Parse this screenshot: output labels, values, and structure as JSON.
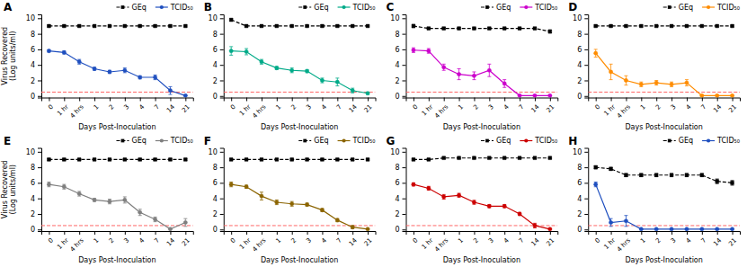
{
  "chart_data": [
    {
      "type": "line",
      "title": "A",
      "x_label": "Days Post-Inoculation",
      "y_label": "Virus Recovered\n(Log units/ml)",
      "categories": [
        "0",
        "1 hr",
        "4 hrs",
        "1",
        "2",
        "3",
        "4",
        "7",
        "14",
        "21"
      ],
      "ylim": [
        -0.2,
        10.5
      ],
      "yticks": [
        0,
        2,
        4,
        6,
        8,
        10
      ],
      "grid": false,
      "legend": "upper right",
      "hline": {
        "value": 0.5,
        "color": "#FF6666",
        "line_style": "dashed"
      },
      "series": [
        {
          "name": "GEq",
          "color": "black",
          "marker": "square",
          "line_style": "dashed",
          "values": [
            9.0,
            9.0,
            9.0,
            9.0,
            9.0,
            9.0,
            9.0,
            9.0,
            9.0,
            9.0
          ],
          "errors": [
            0.1,
            0.1,
            0.1,
            0.1,
            0.1,
            0.1,
            0.1,
            0.1,
            0.1,
            0.1
          ]
        },
        {
          "name": "TCID₅₀",
          "color": "#1F4FBF",
          "marker": "circle",
          "line_style": "solid",
          "values": [
            5.8,
            5.6,
            4.4,
            3.5,
            3.1,
            3.3,
            2.4,
            2.4,
            0.7,
            0.05
          ],
          "errors": [
            0.15,
            0.2,
            0.3,
            0.2,
            0.2,
            0.3,
            0.2,
            0.3,
            0.5,
            0.05
          ]
        }
      ]
    },
    {
      "type": "line",
      "title": "B",
      "x_label": "Days Post-Inoculation",
      "categories": [
        "0",
        "1 hr",
        "4 hrs",
        "1",
        "2",
        "3",
        "4",
        "7",
        "14",
        "21"
      ],
      "ylim": [
        -0.2,
        10.5
      ],
      "yticks": [
        0,
        2,
        4,
        6,
        8,
        10
      ],
      "grid": false,
      "legend": "upper right",
      "hline": {
        "value": 0.5,
        "color": "#FF6666",
        "line_style": "dashed"
      },
      "series": [
        {
          "name": "GEq",
          "color": "black",
          "marker": "square",
          "line_style": "dashed",
          "values": [
            9.8,
            9.0,
            9.0,
            9.0,
            9.0,
            9.0,
            9.0,
            9.0,
            9.0,
            9.0
          ],
          "errors": [
            0.15,
            0.1,
            0.1,
            0.1,
            0.1,
            0.1,
            0.1,
            0.1,
            0.1,
            0.1
          ]
        },
        {
          "name": "TCID₅₀",
          "color": "#00AA88",
          "marker": "circle",
          "line_style": "solid",
          "values": [
            5.8,
            5.7,
            4.4,
            3.6,
            3.3,
            3.2,
            2.0,
            1.8,
            0.7,
            0.35
          ],
          "errors": [
            0.55,
            0.4,
            0.3,
            0.2,
            0.3,
            0.2,
            0.3,
            0.5,
            0.3,
            0.15
          ]
        }
      ]
    },
    {
      "type": "line",
      "title": "C",
      "x_label": "Days Post-Inoculation",
      "categories": [
        "0",
        "1 hr",
        "4 hrs",
        "1",
        "2",
        "3",
        "4",
        "7",
        "14",
        "21"
      ],
      "ylim": [
        -0.2,
        10.5
      ],
      "yticks": [
        0,
        2,
        4,
        6,
        8,
        10
      ],
      "grid": false,
      "legend": "upper right",
      "hline": {
        "value": 0.5,
        "color": "#FF6666",
        "line_style": "dashed"
      },
      "series": [
        {
          "name": "GEq",
          "color": "black",
          "marker": "square",
          "line_style": "dashed",
          "values": [
            9.0,
            8.7,
            8.7,
            8.7,
            8.7,
            8.7,
            8.7,
            8.7,
            8.7,
            8.3
          ],
          "errors": [
            0.2,
            0.1,
            0.1,
            0.1,
            0.1,
            0.1,
            0.1,
            0.1,
            0.1,
            0.2
          ]
        },
        {
          "name": "TCID₅₀",
          "color": "#CC00CC",
          "marker": "circle",
          "line_style": "solid",
          "values": [
            5.9,
            5.8,
            3.7,
            2.8,
            2.6,
            3.3,
            1.6,
            0.05,
            0.05,
            0.05
          ],
          "errors": [
            0.3,
            0.3,
            0.4,
            0.7,
            0.5,
            0.8,
            0.5,
            0.05,
            0.05,
            0.05
          ]
        }
      ]
    },
    {
      "type": "line",
      "title": "D",
      "x_label": "Days Post-Inoculation",
      "categories": [
        "0",
        "1 hr",
        "4 hrs",
        "1",
        "2",
        "3",
        "4",
        "7",
        "14",
        "21"
      ],
      "ylim": [
        -0.2,
        10.5
      ],
      "yticks": [
        0,
        2,
        4,
        6,
        8,
        10
      ],
      "grid": false,
      "legend": "upper right",
      "hline": {
        "value": 0.5,
        "color": "#FF6666",
        "line_style": "dashed"
      },
      "series": [
        {
          "name": "GEq",
          "color": "black",
          "marker": "square",
          "line_style": "dashed",
          "values": [
            9.0,
            9.0,
            9.0,
            9.0,
            9.0,
            9.0,
            9.0,
            9.0,
            9.0,
            9.0
          ],
          "errors": [
            0.1,
            0.1,
            0.1,
            0.1,
            0.1,
            0.1,
            0.1,
            0.1,
            0.1,
            0.1
          ]
        },
        {
          "name": "TCID₅₀",
          "color": "#FF8C00",
          "marker": "circle",
          "line_style": "solid",
          "values": [
            5.5,
            3.1,
            2.0,
            1.5,
            1.7,
            1.5,
            1.7,
            0.05,
            0.05,
            0.05
          ],
          "errors": [
            0.5,
            1.0,
            0.6,
            0.3,
            0.3,
            0.3,
            0.4,
            0.05,
            0.05,
            0.05
          ]
        }
      ]
    },
    {
      "type": "line",
      "title": "E",
      "x_label": "Days Post-Inoculation",
      "y_label": "Virus Recovered\n(Log units/ml)",
      "categories": [
        "0",
        "1 hr",
        "4 hrs",
        "1",
        "2",
        "3",
        "4",
        "7",
        "14",
        "21"
      ],
      "ylim": [
        -0.2,
        10.5
      ],
      "yticks": [
        0,
        2,
        4,
        6,
        8,
        10
      ],
      "grid": false,
      "legend": "upper right",
      "hline": {
        "value": 0.5,
        "color": "#FF6666",
        "line_style": "dashed"
      },
      "series": [
        {
          "name": "GEq",
          "color": "black",
          "marker": "square",
          "line_style": "dashed",
          "values": [
            9.0,
            9.0,
            9.0,
            9.0,
            9.0,
            9.0,
            9.0,
            9.0,
            9.0,
            9.0
          ],
          "errors": [
            0.1,
            0.1,
            0.1,
            0.1,
            0.1,
            0.1,
            0.1,
            0.1,
            0.1,
            0.1
          ]
        },
        {
          "name": "TCID₅₀",
          "color": "#7F7F7F",
          "marker": "circle",
          "line_style": "solid",
          "values": [
            5.8,
            5.5,
            4.6,
            3.8,
            3.6,
            3.8,
            2.2,
            1.3,
            0.05,
            0.9
          ],
          "errors": [
            0.3,
            0.3,
            0.3,
            0.2,
            0.3,
            0.4,
            0.4,
            0.3,
            0.05,
            0.5
          ]
        }
      ]
    },
    {
      "type": "line",
      "title": "F",
      "x_label": "Days Post-Inoculation",
      "categories": [
        "0",
        "1 hr",
        "4 hrs",
        "1",
        "2",
        "3",
        "4",
        "7",
        "14",
        "21"
      ],
      "ylim": [
        -0.2,
        10.5
      ],
      "yticks": [
        0,
        2,
        4,
        6,
        8,
        10
      ],
      "grid": false,
      "legend": "upper right",
      "hline": {
        "value": 0.5,
        "color": "#FF6666",
        "line_style": "dashed"
      },
      "series": [
        {
          "name": "GEq",
          "color": "black",
          "marker": "square",
          "line_style": "dashed",
          "values": [
            9.0,
            9.0,
            9.0,
            9.0,
            9.0,
            9.0,
            9.0,
            9.0,
            9.0,
            9.0
          ],
          "errors": [
            0.1,
            0.1,
            0.1,
            0.1,
            0.1,
            0.1,
            0.1,
            0.1,
            0.1,
            0.1
          ]
        },
        {
          "name": "TCID₅₀",
          "color": "#8B6400",
          "marker": "circle",
          "line_style": "solid",
          "values": [
            5.8,
            5.5,
            4.3,
            3.5,
            3.3,
            3.2,
            2.5,
            1.2,
            0.3,
            0.05
          ],
          "errors": [
            0.3,
            0.2,
            0.5,
            0.3,
            0.3,
            0.2,
            0.2,
            0.2,
            0.2,
            0.05
          ]
        }
      ]
    },
    {
      "type": "line",
      "title": "G",
      "x_label": "Days Post-Inoculation",
      "categories": [
        "0",
        "1 hr",
        "4 hrs",
        "1",
        "2",
        "3",
        "4",
        "7",
        "14",
        "21"
      ],
      "ylim": [
        -0.2,
        10.5
      ],
      "yticks": [
        0,
        2,
        4,
        6,
        8,
        10
      ],
      "grid": false,
      "legend": "upper right",
      "hline": {
        "value": 0.5,
        "color": "#FF6666",
        "line_style": "dashed"
      },
      "series": [
        {
          "name": "GEq",
          "color": "black",
          "marker": "square",
          "line_style": "dashed",
          "values": [
            9.0,
            9.0,
            9.2,
            9.2,
            9.2,
            9.2,
            9.2,
            9.2,
            9.2,
            9.2
          ],
          "errors": [
            0.1,
            0.1,
            0.1,
            0.1,
            0.1,
            0.1,
            0.1,
            0.1,
            0.1,
            0.1
          ]
        },
        {
          "name": "TCID₅₀",
          "color": "#CC0000",
          "marker": "circle",
          "line_style": "solid",
          "values": [
            5.8,
            5.3,
            4.2,
            4.4,
            3.5,
            3.0,
            3.0,
            2.0,
            0.5,
            0.05
          ],
          "errors": [
            0.2,
            0.25,
            0.3,
            0.25,
            0.25,
            0.2,
            0.2,
            0.2,
            0.3,
            0.05
          ]
        }
      ]
    },
    {
      "type": "line",
      "title": "H",
      "x_label": "Days Post-Inoculation",
      "categories": [
        "0",
        "1 hr",
        "4 hrs",
        "1",
        "2",
        "3",
        "4",
        "7",
        "14",
        "21"
      ],
      "ylim": [
        -0.2,
        10.5
      ],
      "yticks": [
        0,
        2,
        4,
        6,
        8,
        10
      ],
      "grid": false,
      "legend": "upper right",
      "hline": {
        "value": 0.5,
        "color": "#FF6666",
        "line_style": "dashed"
      },
      "series": [
        {
          "name": "GEq",
          "color": "black",
          "marker": "square",
          "line_style": "dashed",
          "values": [
            8.0,
            7.8,
            7.0,
            7.0,
            7.0,
            7.0,
            7.0,
            7.0,
            6.2,
            6.0
          ],
          "errors": [
            0.2,
            0.2,
            0.2,
            0.2,
            0.2,
            0.2,
            0.2,
            0.2,
            0.3,
            0.3
          ]
        },
        {
          "name": "TCID₅₀",
          "color": "#1F4FBF",
          "marker": "circle",
          "line_style": "solid",
          "values": [
            5.8,
            0.9,
            1.1,
            0.05,
            0.05,
            0.05,
            0.05,
            0.05,
            0.05,
            0.05
          ],
          "errors": [
            0.3,
            0.5,
            0.7,
            0.05,
            0.05,
            0.05,
            0.05,
            0.05,
            0.05,
            0.05
          ]
        }
      ]
    }
  ]
}
